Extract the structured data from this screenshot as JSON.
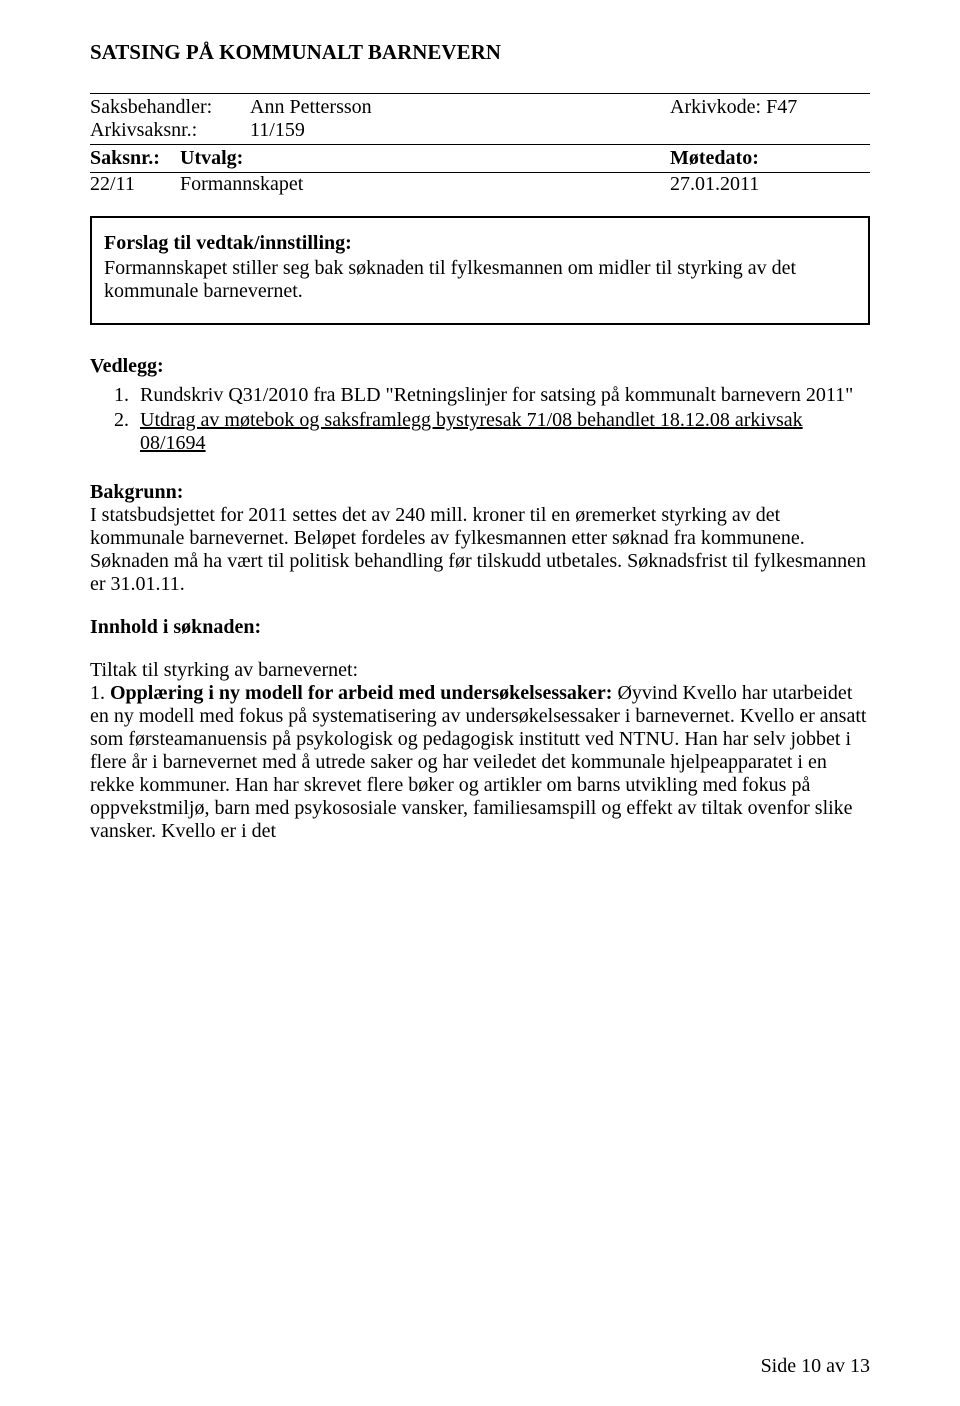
{
  "title": "SATSING PÅ KOMMUNALT BARNEVERN",
  "meta": {
    "saksbehandler_label": "Saksbehandler:",
    "saksbehandler_value": "Ann Pettersson",
    "arkivkode_label": "Arkivkode: F47",
    "arkivsaksnr_label": "Arkivsaksnr.:",
    "arkivsaksnr_value": "11/159"
  },
  "table": {
    "h1": "Saksnr.:",
    "h2": "Utvalg:",
    "h3": "Møtedato:",
    "r1c1": "22/11",
    "r1c2": "Formannskapet",
    "r1c3": "27.01.2011"
  },
  "box": {
    "heading": "Forslag til vedtak/innstilling:",
    "body": "Formannskapet stiller seg bak søknaden til fylkesmannen om midler til styrking av det kommunale barnevernet."
  },
  "vedlegg": {
    "heading": "Vedlegg:",
    "items": [
      "Rundskriv Q31/2010 fra BLD \"Retningslinjer for satsing på kommunalt barnevern 2011\"",
      "Utdrag av møtebok og saksframlegg bystyresak 71/08 behandlet 18.12.08 arkivsak 08/1694"
    ]
  },
  "bakgrunn": {
    "heading": "Bakgrunn:",
    "body": "I statsbudsjettet for 2011 settes det av 240 mill. kroner til en øremerket styrking av det kommunale barnevernet. Beløpet fordeles av fylkesmannen etter søknad fra kommunene. Søknaden må ha vært til politisk behandling før tilskudd utbetales. Søknadsfrist til fylkesmannen er 31.01.11."
  },
  "innhold": {
    "heading": "Innhold i søknaden:",
    "subheading": "Tiltak til styrking av barnevernet:",
    "item_label": " 1. ",
    "item_bold": "Opplæring i ny modell for arbeid med undersøkelsessaker:",
    "item_rest": " Øyvind Kvello har utarbeidet en ny modell med fokus på systematisering av undersøkelsessaker i barnevernet. Kvello er ansatt som førsteamanuensis på psykologisk og pedagogisk institutt ved NTNU. Han har selv jobbet i flere år i barnevernet med å utrede saker og har veiledet det kommunale hjelpeapparatet i en rekke kommuner. Han har skrevet flere bøker og artikler om barns utvikling med fokus på oppvekstmiljø, barn med psykososiale vansker, familiesamspill og effekt av tiltak ovenfor slike vansker. Kvello er i det"
  },
  "footer": "Side 10 av 13"
}
